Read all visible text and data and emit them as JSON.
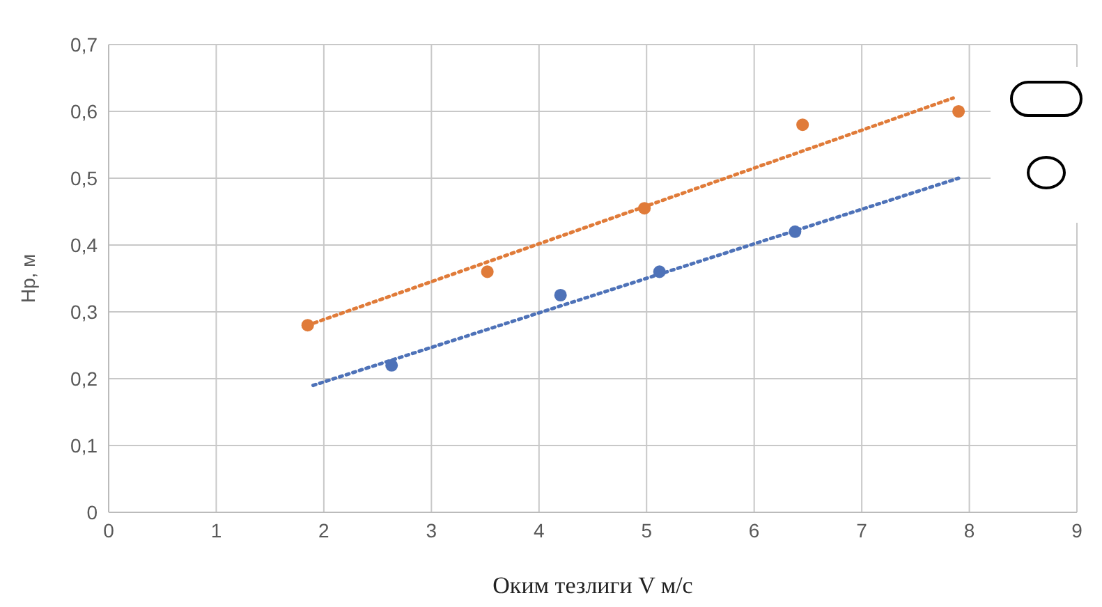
{
  "chart_data": {
    "type": "scatter",
    "xlabel": "Оким тезлиги  V м/с",
    "ylabel": "Hp, м",
    "xlim": [
      0,
      9
    ],
    "xticks": [
      0,
      1,
      2,
      3,
      4,
      5,
      6,
      7,
      8,
      9
    ],
    "ylim": [
      0,
      0.7
    ],
    "yticks": [
      {
        "value": 0,
        "label": "0"
      },
      {
        "value": 0.1,
        "label": "0,1"
      },
      {
        "value": 0.2,
        "label": "0,2"
      },
      {
        "value": 0.3,
        "label": "0,3"
      },
      {
        "value": 0.4,
        "label": "0,4"
      },
      {
        "value": 0.5,
        "label": "0,5"
      },
      {
        "value": 0.6,
        "label": "0,6"
      },
      {
        "value": 0.7,
        "label": "0,7"
      }
    ],
    "grid": true,
    "series": [
      {
        "marker": "circle",
        "color": "#e07b39",
        "x": [
          1.85,
          3.52,
          4.98,
          6.45,
          7.9
        ],
        "values": [
          0.28,
          0.36,
          0.455,
          0.58,
          0.6
        ]
      },
      {
        "marker": "circle",
        "color": "#4e72b8",
        "x": [
          2.63,
          4.2,
          5.12,
          6.38
        ],
        "values": [
          0.22,
          0.325,
          0.36,
          0.42
        ]
      },
      {
        "type": "line",
        "marker": "none",
        "color": "#e07b39",
        "line_style": "dotted",
        "x": [
          1.85,
          7.85
        ],
        "values": [
          0.28,
          0.62
        ]
      },
      {
        "type": "line",
        "marker": "none",
        "color": "#4e72b8",
        "line_style": "dotted",
        "x": [
          1.9,
          7.9
        ],
        "values": [
          0.19,
          0.5
        ]
      }
    ]
  }
}
